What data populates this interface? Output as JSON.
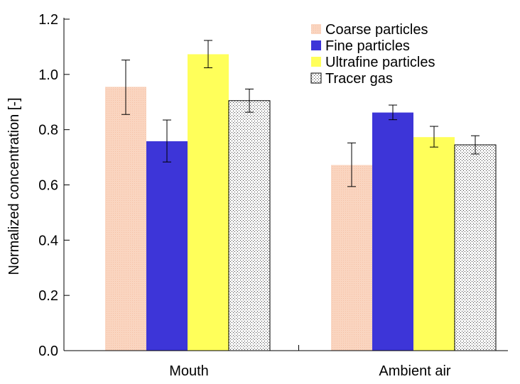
{
  "chart_data": {
    "type": "bar",
    "title": "",
    "xlabel": "",
    "ylabel": "Normalized concentration [-]",
    "ylim": [
      0,
      1.2
    ],
    "yticks": [
      0.0,
      0.2,
      0.4,
      0.6,
      0.8,
      1.0,
      1.2
    ],
    "ytick_labels": [
      "0.0",
      "0.2",
      "0.4",
      "0.6",
      "0.8",
      "1.0",
      "1.2"
    ],
    "categories": [
      "Mouth",
      "Ambient air"
    ],
    "grid": false,
    "legend_position": "top-right",
    "series": [
      {
        "name": "Coarse particles",
        "color": "#fad5c0",
        "pattern": "fine-dots-light",
        "values": [
          0.955,
          0.672
        ],
        "error_low": [
          0.855,
          0.594
        ],
        "error_high": [
          1.052,
          0.752
        ]
      },
      {
        "name": "Fine particles",
        "color": "#3d35d8",
        "pattern": "solid",
        "values": [
          0.758,
          0.862
        ],
        "error_low": [
          0.683,
          0.836
        ],
        "error_high": [
          0.835,
          0.889
        ]
      },
      {
        "name": "Ultrafine particles",
        "color": "#ffff5a",
        "pattern": "solid",
        "values": [
          1.073,
          0.773
        ],
        "error_low": [
          1.024,
          0.737
        ],
        "error_high": [
          1.123,
          0.812
        ]
      },
      {
        "name": "Tracer gas",
        "color": "#ffffff",
        "pattern": "dots",
        "values": [
          0.905,
          0.745
        ],
        "error_low": [
          0.863,
          0.712
        ],
        "error_high": [
          0.947,
          0.778
        ]
      }
    ]
  }
}
